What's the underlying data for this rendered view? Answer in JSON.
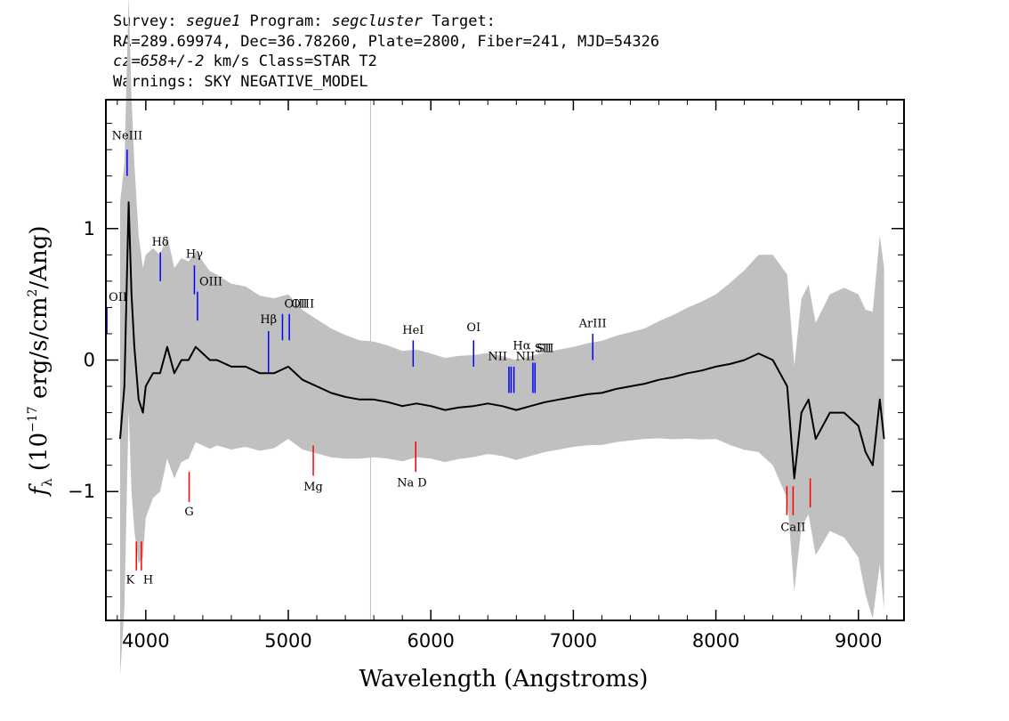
{
  "header": {
    "line1": {
      "survey_label": "Survey: ",
      "survey": "segue1",
      "program_label": " Program: ",
      "program": "segcluster",
      "target_label": " Target:"
    },
    "line2": "RA=289.69974, Dec=36.78260, Plate=2800, Fiber=241, MJD=54326",
    "line3": {
      "cz": "cz=658+/-2",
      "rest": " km/s Class=STAR T2"
    },
    "line4": "Warnings: SKY NEGATIVE_MODEL"
  },
  "colors": {
    "flux": "#000000",
    "error": "#c0c0c0",
    "emission": "#0000ff",
    "absorption": "#ff0000"
  },
  "chart_data": {
    "type": "line",
    "xlabel": "Wavelength (Angstroms)",
    "ylabel_parts": {
      "sym": "f",
      "sub": "λ",
      "unit1": " (10",
      "exp": "−17",
      "unit2": " erg/s/cm",
      "exp2": "2",
      "unit3": "/Ang)"
    },
    "xlim": [
      3720,
      9320
    ],
    "ylim": [
      -1.98,
      1.98
    ],
    "x_ticks": [
      4000,
      5000,
      6000,
      7000,
      8000,
      9000
    ],
    "x_tick_labels": [
      "4000",
      "5000",
      "6000",
      "7000",
      "8000",
      "9000"
    ],
    "y_ticks": [
      -1,
      0,
      1
    ],
    "y_tick_labels": [
      "−1",
      "0",
      "1"
    ],
    "sky_line": 5577,
    "grid": false,
    "series": [
      {
        "role": "flux",
        "x": [
          3820,
          3850,
          3880,
          3900,
          3920,
          3950,
          3980,
          4000,
          4050,
          4100,
          4150,
          4200,
          4250,
          4300,
          4350,
          4400,
          4450,
          4500,
          4600,
          4700,
          4800,
          4900,
          5000,
          5100,
          5200,
          5300,
          5400,
          5500,
          5600,
          5700,
          5800,
          5900,
          6000,
          6100,
          6200,
          6300,
          6400,
          6500,
          6600,
          6700,
          6800,
          6900,
          7000,
          7100,
          7200,
          7300,
          7400,
          7500,
          7600,
          7700,
          7800,
          7900,
          8000,
          8100,
          8200,
          8300,
          8400,
          8500,
          8550,
          8600,
          8650,
          8700,
          8750,
          8800,
          8900,
          9000,
          9050,
          9100,
          9150,
          9180
        ],
        "y": [
          -0.6,
          -0.2,
          1.2,
          0.5,
          0.1,
          -0.3,
          -0.4,
          -0.2,
          -0.1,
          -0.1,
          0.1,
          -0.1,
          0.0,
          0.0,
          0.1,
          0.05,
          0.0,
          0.0,
          -0.05,
          -0.05,
          -0.1,
          -0.1,
          -0.05,
          -0.15,
          -0.2,
          -0.25,
          -0.28,
          -0.3,
          -0.3,
          -0.32,
          -0.35,
          -0.33,
          -0.35,
          -0.38,
          -0.36,
          -0.35,
          -0.33,
          -0.35,
          -0.38,
          -0.35,
          -0.32,
          -0.3,
          -0.28,
          -0.26,
          -0.25,
          -0.22,
          -0.2,
          -0.18,
          -0.15,
          -0.13,
          -0.1,
          -0.08,
          -0.05,
          -0.03,
          0.0,
          0.05,
          0.0,
          -0.2,
          -0.9,
          -0.4,
          -0.3,
          -0.6,
          -0.5,
          -0.4,
          -0.4,
          -0.5,
          -0.7,
          -0.8,
          -0.3,
          -0.6
        ]
      },
      {
        "role": "error",
        "x": [
          3820,
          3900,
          4000,
          4200,
          4500,
          5000,
          5500,
          6000,
          6500,
          7000,
          7500,
          8000,
          8300,
          8500,
          8800,
          9000,
          9180
        ],
        "y": [
          1.8,
          1.5,
          1.0,
          0.8,
          0.65,
          0.55,
          0.45,
          0.4,
          0.38,
          0.38,
          0.42,
          0.55,
          0.75,
          0.85,
          0.9,
          1.0,
          1.3
        ]
      }
    ],
    "line_markers": [
      {
        "name": "OII",
        "x": 3727,
        "y0": 0.2,
        "y1": 0.4,
        "label_y": 0.45,
        "color": "emission",
        "anchor": "start"
      },
      {
        "name": "NeIII",
        "x": 3869,
        "y0": 1.4,
        "y1": 1.6,
        "label_y": 1.68,
        "color": "emission",
        "anchor": "middle"
      },
      {
        "name": "Hδ",
        "x": 4102,
        "y0": 0.6,
        "y1": 0.82,
        "label_y": 0.87,
        "color": "emission",
        "anchor": "middle"
      },
      {
        "name": "Hγ",
        "x": 4341,
        "y0": 0.5,
        "y1": 0.72,
        "label_y": 0.78,
        "color": "emission",
        "anchor": "middle"
      },
      {
        "name": "OIII",
        "x": 4363,
        "y0": 0.3,
        "y1": 0.52,
        "label_y": 0.57,
        "color": "emission",
        "anchor": "start"
      },
      {
        "name": "Hβ",
        "x": 4861,
        "y0": -0.1,
        "y1": 0.22,
        "label_y": 0.28,
        "color": "emission",
        "anchor": "middle"
      },
      {
        "name": "OIII",
        "x": 4959,
        "y0": 0.15,
        "y1": 0.35,
        "label_y": 0.4,
        "color": "emission",
        "anchor": "start"
      },
      {
        "name": "OIII",
        "x": 5007,
        "y0": 0.15,
        "y1": 0.35,
        "label_y": 0.4,
        "color": "emission",
        "anchor": "start"
      },
      {
        "name": "HeI",
        "x": 5876,
        "y0": -0.05,
        "y1": 0.15,
        "label_y": 0.2,
        "color": "emission",
        "anchor": "middle"
      },
      {
        "name": "OI",
        "x": 6300,
        "y0": -0.05,
        "y1": 0.15,
        "label_y": 0.22,
        "color": "emission",
        "anchor": "middle"
      },
      {
        "name": "NII",
        "x": 6548,
        "y0": -0.25,
        "y1": -0.05,
        "label_y": 0.0,
        "color": "emission",
        "anchor": "end"
      },
      {
        "name": "Hα",
        "x": 6563,
        "y0": -0.25,
        "y1": -0.05,
        "label_y": 0.08,
        "color": "emission",
        "anchor": "start"
      },
      {
        "name": "NII",
        "x": 6583,
        "y0": -0.25,
        "y1": -0.05,
        "label_y": 0.0,
        "color": "emission",
        "anchor": "start"
      },
      {
        "name": "SII",
        "x": 6716,
        "y0": -0.25,
        "y1": -0.02,
        "label_y": 0.06,
        "color": "emission",
        "anchor": "start"
      },
      {
        "name": "SII",
        "x": 6731,
        "y0": -0.25,
        "y1": -0.02,
        "label_y": 0.06,
        "color": "emission",
        "anchor": "start"
      },
      {
        "name": "ArIII",
        "x": 7136,
        "y0": 0.0,
        "y1": 0.2,
        "label_y": 0.25,
        "color": "emission",
        "anchor": "middle"
      },
      {
        "name": "K",
        "x": 3934,
        "y0": -1.6,
        "y1": -1.38,
        "label_y": -1.7,
        "color": "absorption",
        "anchor": "end"
      },
      {
        "name": "H",
        "x": 3969,
        "y0": -1.6,
        "y1": -1.38,
        "label_y": -1.7,
        "color": "absorption",
        "anchor": "start"
      },
      {
        "name": "G",
        "x": 4304,
        "y0": -1.08,
        "y1": -0.85,
        "label_y": -1.18,
        "color": "absorption",
        "anchor": "middle"
      },
      {
        "name": "Mg",
        "x": 5175,
        "y0": -0.88,
        "y1": -0.65,
        "label_y": -0.99,
        "color": "absorption",
        "anchor": "middle"
      },
      {
        "name": "Na",
        "x": 5894,
        "y0": -0.85,
        "y1": -0.62,
        "label_y": -0.96,
        "color": "absorption",
        "anchor": "end"
      },
      {
        "name": "D",
        "x": 5894,
        "y0": -0.85,
        "y1": -0.62,
        "label_y": -0.96,
        "color": "absorption",
        "anchor": "start"
      },
      {
        "name": "CaII",
        "x": 8542,
        "y0": -1.18,
        "y1": -0.96,
        "label_y": -1.3,
        "color": "absorption",
        "anchor": "middle"
      },
      {
        "name": "",
        "x": 8498,
        "y0": -1.18,
        "y1": -0.96,
        "label_y": null,
        "color": "absorption",
        "anchor": "middle"
      },
      {
        "name": "",
        "x": 8662,
        "y0": -1.12,
        "y1": -0.9,
        "label_y": null,
        "color": "absorption",
        "anchor": "middle"
      }
    ]
  }
}
